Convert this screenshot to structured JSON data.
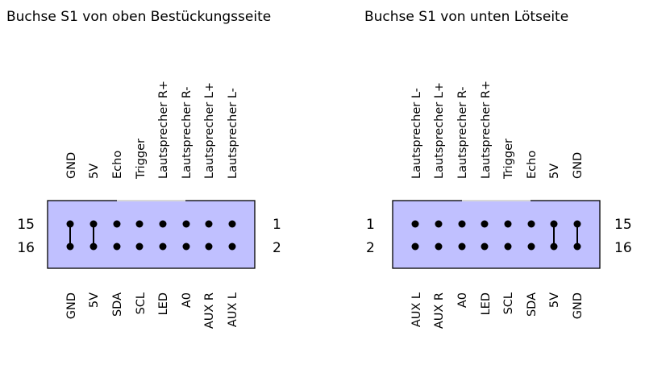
{
  "left": {
    "title": "Buchse S1 von oben Bestückungsseite",
    "top_labels": [
      "GND",
      "5V",
      "Echo",
      "Trigger",
      "Lautsprecher R+",
      "Lautsprecher R-",
      "Lautsprecher L+",
      "Lautsprecher L-"
    ],
    "bottom_labels": [
      "GND",
      "5V",
      "SDA",
      "SCL",
      "LED",
      "A0",
      "AUX R",
      "AUX L"
    ],
    "row1_left_number": "15",
    "row2_left_number": "16",
    "row1_right_number": "1",
    "row2_right_number": "2"
  },
  "right": {
    "title": "Buchse S1 von unten Lötseite",
    "top_labels": [
      "Lautsprecher L-",
      "Lautsprecher L+",
      "Lautsprecher R-",
      "Lautsprecher R+",
      "Trigger",
      "Echo",
      "5V",
      "GND"
    ],
    "bottom_labels": [
      "AUX L",
      "AUX R",
      "A0",
      "LED",
      "SCL",
      "SDA",
      "5V",
      "GND"
    ],
    "row1_left_number": "1",
    "row2_left_number": "2",
    "row1_right_number": "15",
    "row2_right_number": "16"
  },
  "colors": {
    "connector_fill": "#c0c0ff",
    "connector_stroke": "#000000",
    "key_notch": "#d8d8d8"
  }
}
